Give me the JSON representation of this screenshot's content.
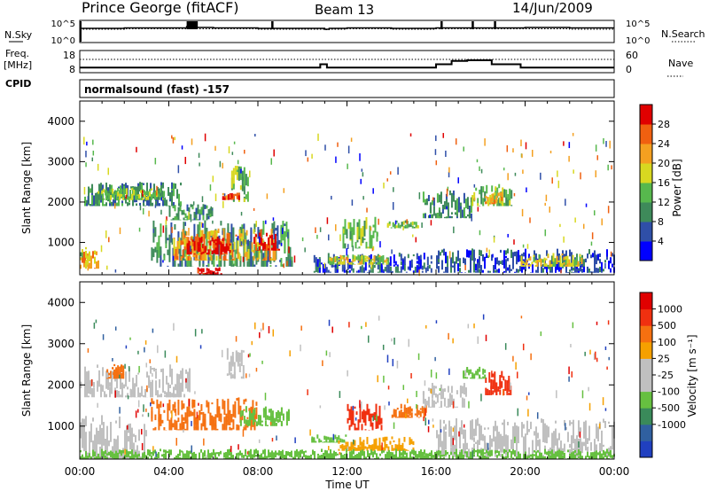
{
  "header": {
    "station": "Prince George (fitACF)",
    "beam": "Beam 13",
    "date": "14/Jun/2009"
  },
  "noise_panel": {
    "left_label": "N.Sky",
    "left_ticks": [
      "10^5",
      "10^0"
    ],
    "right_ticks": [
      "10^5",
      "10^0"
    ],
    "right_label": "N.Search"
  },
  "freq_panel": {
    "left_label_top": "Freq.",
    "left_label_unit": "[MHz]",
    "left_ticks": [
      "18",
      "8"
    ],
    "right_ticks": [
      "60",
      "0"
    ],
    "right_label": "Nave",
    "cpid_label": "CPID",
    "cpid_text": "normalsound (fast) -157"
  },
  "time_axis": {
    "label": "Time UT",
    "ticks": [
      "00:00",
      "04:00",
      "08:00",
      "12:00",
      "16:00",
      "20:00",
      "00:00"
    ]
  },
  "colors": {
    "power_scale": [
      "#0000ff",
      "#2f4fa8",
      "#3e8a5a",
      "#57b84d",
      "#d8d820",
      "#f4a020",
      "#f06010",
      "#e00000"
    ],
    "velocity_scale": [
      "#2040c0",
      "#3060a0",
      "#3a8a5a",
      "#66c040",
      "#c0c0c0",
      "#c0c0c0",
      "#f5a000",
      "#f57010",
      "#f03010",
      "#e00000"
    ],
    "ground_scatter": "#bbbbbb"
  },
  "chart_data": [
    {
      "type": "line",
      "panel": "noise",
      "x_hours": [
        0,
        2,
        4,
        4.8,
        5.2,
        6,
        8,
        10,
        11,
        11.2,
        12,
        14,
        16,
        18,
        20,
        22,
        24
      ],
      "series": [
        {
          "name": "N.Sky",
          "values": [
            3.2,
            3.3,
            3.3,
            3.6,
            3.4,
            3.3,
            3.2,
            3.2,
            3.0,
            3.2,
            3.3,
            3.2,
            3.3,
            3.3,
            3.4,
            3.3,
            3.3
          ]
        },
        {
          "name": "N.Search",
          "values": [
            3.0,
            3.1,
            3.1,
            3.2,
            3.1,
            3.1,
            3.0,
            3.0,
            2.9,
            3.0,
            3.1,
            3.0,
            3.1,
            3.1,
            3.1,
            3.0,
            3.0
          ]
        }
      ],
      "ylim": [
        0,
        5
      ]
    },
    {
      "type": "line",
      "panel": "freq",
      "x_hours": [
        0,
        1,
        3,
        5,
        8,
        10.8,
        11.1,
        13,
        16,
        16.7,
        17.4,
        18.5,
        19.4,
        19.8,
        20.2,
        24
      ],
      "series": [
        {
          "name": "Freq.",
          "values": [
            10.3,
            10.3,
            10.3,
            10.3,
            10.3,
            11.8,
            10.3,
            10.3,
            11.8,
            13.3,
            13.6,
            11.8,
            11.8,
            10.3,
            10.3,
            10.3
          ]
        },
        {
          "name": "Nave",
          "values": [
            36,
            36,
            36,
            36,
            36,
            36,
            36,
            36,
            36,
            36,
            36,
            36,
            36,
            36,
            36,
            36
          ]
        }
      ],
      "ylim": [
        8,
        18
      ]
    },
    {
      "type": "heatmap",
      "panel": "power",
      "xlabel": "",
      "ylabel": "Slant Range [km]",
      "xlim": [
        0,
        24
      ],
      "ylim": [
        200,
        4500
      ],
      "yticks": [
        "1000",
        "2000",
        "3000",
        "4000"
      ],
      "colorbar": {
        "label": "Power [dB]",
        "ticks": [
          "4",
          "8",
          "12",
          "16",
          "20",
          "24",
          "28"
        ]
      },
      "regions": [
        {
          "t0": 0.2,
          "t1": 4.6,
          "r0": 1900,
          "r1": 2500,
          "level": 2
        },
        {
          "t0": 0.8,
          "t1": 3.8,
          "r0": 2050,
          "r1": 2350,
          "level": 3
        },
        {
          "t0": 4.0,
          "t1": 6.0,
          "r0": 1550,
          "r1": 1950,
          "level": 2
        },
        {
          "t0": 6.8,
          "t1": 7.6,
          "r0": 2000,
          "r1": 2900,
          "level": 3
        },
        {
          "t0": 6.4,
          "t1": 7.2,
          "r0": 2050,
          "r1": 2250,
          "level": 6
        },
        {
          "t0": 3.2,
          "t1": 9.6,
          "r0": 400,
          "r1": 1550,
          "level": 2
        },
        {
          "t0": 4.2,
          "t1": 8.8,
          "r0": 550,
          "r1": 1350,
          "level": 5
        },
        {
          "t0": 4.8,
          "t1": 6.8,
          "r0": 700,
          "r1": 1150,
          "level": 7
        },
        {
          "t0": 7.8,
          "t1": 9.0,
          "r0": 800,
          "r1": 1250,
          "level": 7
        },
        {
          "t0": 0.0,
          "t1": 0.9,
          "r0": 350,
          "r1": 900,
          "level": 5
        },
        {
          "t0": 5.2,
          "t1": 6.4,
          "r0": 200,
          "r1": 400,
          "level": 7
        },
        {
          "t0": 10.5,
          "t1": 15.8,
          "r0": 250,
          "r1": 750,
          "level": 1
        },
        {
          "t0": 11.2,
          "t1": 13.8,
          "r0": 450,
          "r1": 700,
          "level": 4
        },
        {
          "t0": 11.8,
          "t1": 13.4,
          "r0": 850,
          "r1": 1650,
          "level": 3
        },
        {
          "t0": 13.8,
          "t1": 15.2,
          "r0": 1350,
          "r1": 1550,
          "level": 3
        },
        {
          "t0": 15.4,
          "t1": 17.6,
          "r0": 1600,
          "r1": 2300,
          "level": 2
        },
        {
          "t0": 17.6,
          "t1": 19.4,
          "r0": 1900,
          "r1": 2450,
          "level": 3
        },
        {
          "t0": 18.2,
          "t1": 19.0,
          "r0": 1950,
          "r1": 2250,
          "level": 5
        },
        {
          "t0": 16.0,
          "t1": 24.0,
          "r0": 250,
          "r1": 850,
          "level": 1
        },
        {
          "t0": 19.8,
          "t1": 22.6,
          "r0": 400,
          "r1": 750,
          "level": 4
        }
      ]
    },
    {
      "type": "heatmap",
      "panel": "velocity",
      "xlabel": "Time UT",
      "ylabel": "Slant Range [km]",
      "xlim": [
        0,
        24
      ],
      "ylim": [
        200,
        4500
      ],
      "yticks": [
        "1000",
        "2000",
        "3000",
        "4000"
      ],
      "colorbar": {
        "label": "Velocity [m s⁻¹]",
        "ticks": [
          "1000",
          "500",
          "100",
          "25",
          "-25",
          "-100",
          "-500",
          "-1000"
        ]
      },
      "regions": [
        {
          "t0": 0.2,
          "t1": 5.0,
          "r0": 1700,
          "r1": 2500,
          "level": 4
        },
        {
          "t0": 6.6,
          "t1": 7.4,
          "r0": 2150,
          "r1": 2900,
          "level": 4
        },
        {
          "t0": 0.0,
          "t1": 3.0,
          "r0": 200,
          "r1": 1300,
          "level": 4
        },
        {
          "t0": 3.2,
          "t1": 8.0,
          "r0": 900,
          "r1": 1700,
          "level": 7
        },
        {
          "t0": 7.2,
          "t1": 9.4,
          "r0": 1000,
          "r1": 1500,
          "level": 3
        },
        {
          "t0": 1.2,
          "t1": 2.0,
          "r0": 2150,
          "r1": 2550,
          "level": 7
        },
        {
          "t0": 10.4,
          "t1": 12.0,
          "r0": 600,
          "r1": 800,
          "level": 3
        },
        {
          "t0": 11.6,
          "t1": 15.0,
          "r0": 400,
          "r1": 750,
          "level": 6
        },
        {
          "t0": 12.0,
          "t1": 13.6,
          "r0": 900,
          "r1": 1550,
          "level": 8
        },
        {
          "t0": 14.0,
          "t1": 15.6,
          "r0": 1200,
          "r1": 1550,
          "level": 7
        },
        {
          "t0": 15.4,
          "t1": 17.4,
          "r0": 1450,
          "r1": 2050,
          "level": 4
        },
        {
          "t0": 16.0,
          "t1": 24.0,
          "r0": 250,
          "r1": 1200,
          "level": 4
        },
        {
          "t0": 18.2,
          "t1": 19.4,
          "r0": 1750,
          "r1": 2350,
          "level": 8
        },
        {
          "t0": 17.2,
          "t1": 18.2,
          "r0": 2150,
          "r1": 2450,
          "level": 3
        },
        {
          "t0": 0.0,
          "t1": 24.0,
          "r0": 200,
          "r1": 450,
          "level": 3
        }
      ]
    }
  ]
}
